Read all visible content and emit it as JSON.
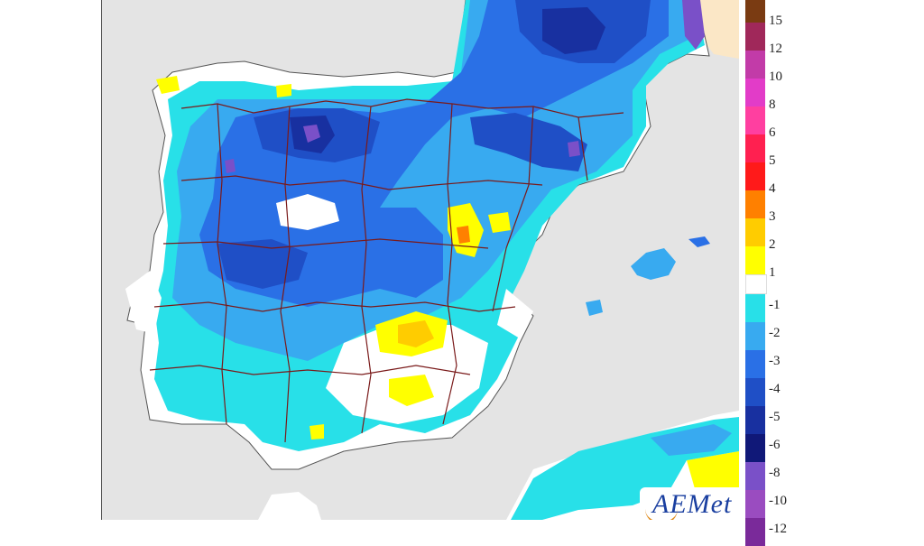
{
  "legend": {
    "items": [
      {
        "label": "15",
        "color": "#7a3b12"
      },
      {
        "label": "12",
        "color": "#a0285a"
      },
      {
        "label": "10",
        "color": "#c23ba8"
      },
      {
        "label": "8",
        "color": "#e23cc8"
      },
      {
        "label": "6",
        "color": "#ff3fa0"
      },
      {
        "label": "5",
        "color": "#ff2050"
      },
      {
        "label": "4",
        "color": "#ff1a1a"
      },
      {
        "label": "3",
        "color": "#ff8000"
      },
      {
        "label": "2",
        "color": "#ffcc00"
      },
      {
        "label": "1",
        "color": "#ffff00"
      },
      {
        "label": "-1",
        "color": "#28e0e8"
      },
      {
        "label": "-2",
        "color": "#38aaf0"
      },
      {
        "label": "-3",
        "color": "#2a70e6"
      },
      {
        "label": "-4",
        "color": "#1f4fc6"
      },
      {
        "label": "-5",
        "color": "#1830a0"
      },
      {
        "label": "-6",
        "color": "#101878"
      },
      {
        "label": "-8",
        "color": "#7a50c8"
      },
      {
        "label": "-10",
        "color": "#9a4cc0"
      },
      {
        "label": "-12",
        "color": "#7a2a9a"
      }
    ],
    "neutral_color": "#ffffff"
  },
  "map": {
    "sea_color": "#e4e4e4",
    "land_neutral_color": "#ffffff",
    "border_color": "#7a1a1a",
    "france_color": "#fbe7c6"
  },
  "logo": {
    "text": "AEMet"
  }
}
